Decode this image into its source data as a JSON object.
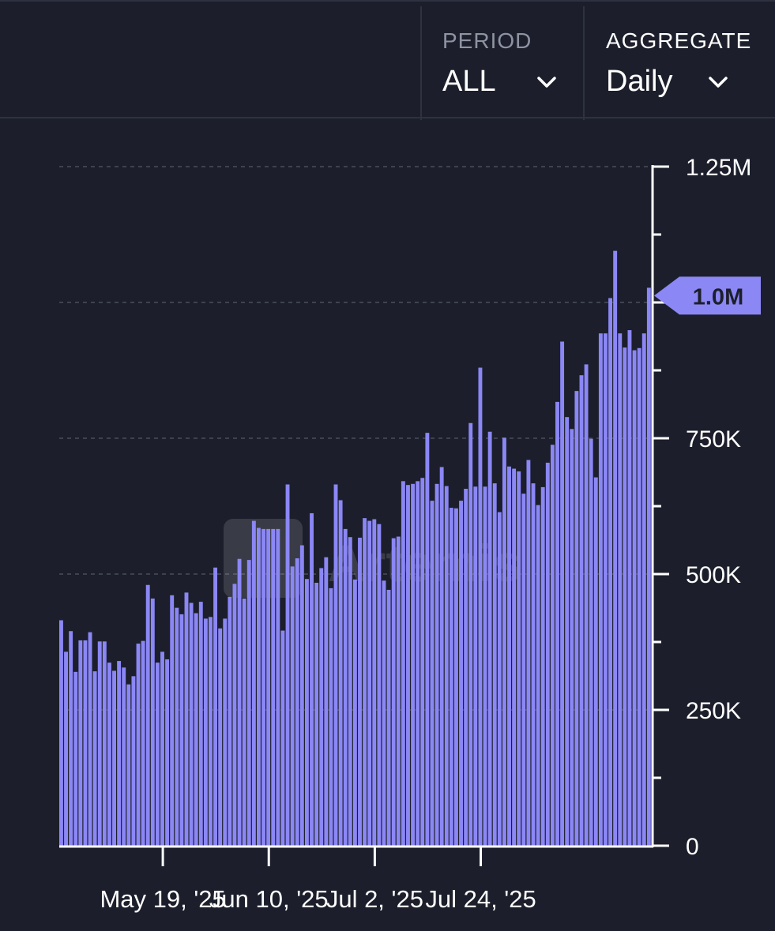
{
  "controls": {
    "period": {
      "label": "PERIOD",
      "value": "ALL"
    },
    "aggregate": {
      "label": "AGGREGATE",
      "value": "Daily"
    }
  },
  "watermark": "Artemis",
  "colors": {
    "bar": "#8b87f5",
    "background": "#1c1f2b",
    "grid": "#4a4e5c",
    "axis": "#ffffff",
    "badge": "#8b87f5"
  },
  "chart_data": {
    "type": "bar",
    "start_date": "2025-04-28",
    "x_tick_labels": [
      "May 19, '25",
      "Jun 10, '25",
      "Jul 2, '25",
      "Jul 24, '25"
    ],
    "y_tick_labels": [
      "0",
      "250K",
      "500K",
      "750K",
      "1M",
      "1.25M"
    ],
    "ylim": [
      0,
      1250000
    ],
    "grid": true,
    "current_value_label": "1.0M",
    "values": [
      415000,
      357000,
      395000,
      320000,
      378000,
      378000,
      393000,
      321000,
      376000,
      376000,
      337000,
      322000,
      340000,
      328000,
      297000,
      312000,
      372000,
      377000,
      480000,
      455000,
      337000,
      357000,
      343000,
      461000,
      438000,
      426000,
      466000,
      447000,
      428000,
      449000,
      418000,
      421000,
      512000,
      400000,
      418000,
      458000,
      482000,
      528000,
      455000,
      526000,
      598000,
      585000,
      583000,
      583000,
      583000,
      583000,
      396000,
      665000,
      514000,
      529000,
      553000,
      491000,
      612000,
      484000,
      511000,
      531000,
      474000,
      665000,
      636000,
      583000,
      568000,
      490000,
      567000,
      603000,
      598000,
      601000,
      592000,
      488000,
      471000,
      566000,
      569000,
      671000,
      664000,
      666000,
      671000,
      677000,
      760000,
      635000,
      666000,
      697000,
      662000,
      622000,
      621000,
      635000,
      657000,
      778000,
      661000,
      880000,
      661000,
      762000,
      667000,
      614000,
      751000,
      698000,
      694000,
      689000,
      648000,
      710000,
      667000,
      627000,
      660000,
      705000,
      738000,
      817000,
      928000,
      789000,
      767000,
      837000,
      866000,
      886000,
      749000,
      678000,
      943000,
      943000,
      1008000,
      1095000,
      943000,
      917000,
      949000,
      912000,
      916000,
      943000,
      1027000
    ]
  }
}
